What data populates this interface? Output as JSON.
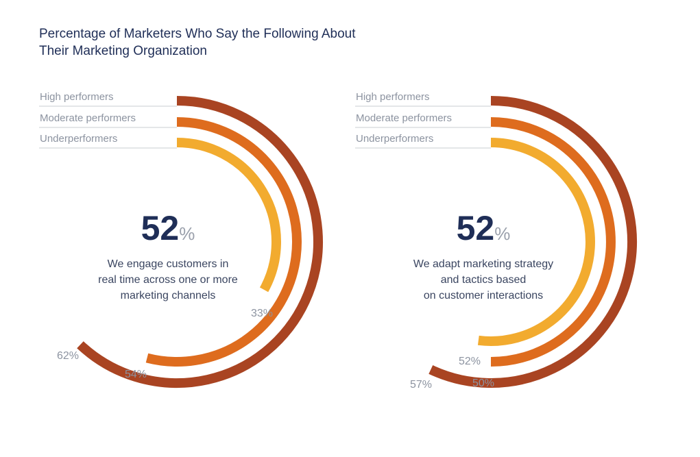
{
  "title": {
    "line1": "Percentage of Marketers Who Say the Following About",
    "line2": "Their Marketing Organization"
  },
  "colors": {
    "high": "#a94422",
    "moderate": "#de6c1e",
    "under": "#f2ab2f"
  },
  "chart_data": [
    {
      "type": "radial-bar",
      "headline_value": "52",
      "headline_unit": "%",
      "statement": [
        "We engage customers in",
        "real time across one or more",
        "marketing channels"
      ],
      "categories": [
        "High performers",
        "Moderate performers",
        "Underperformers"
      ],
      "values": [
        62,
        54,
        33
      ],
      "value_labels": [
        "62%",
        "54%",
        "33%"
      ]
    },
    {
      "type": "radial-bar",
      "headline_value": "52",
      "headline_unit": "%",
      "statement": [
        "We adapt marketing strategy",
        "and tactics based",
        "on customer interactions"
      ],
      "categories": [
        "High performers",
        "Moderate performers",
        "Underperformers"
      ],
      "values": [
        57,
        50,
        52
      ],
      "value_labels": [
        "57%",
        "50%",
        "52%"
      ]
    }
  ]
}
